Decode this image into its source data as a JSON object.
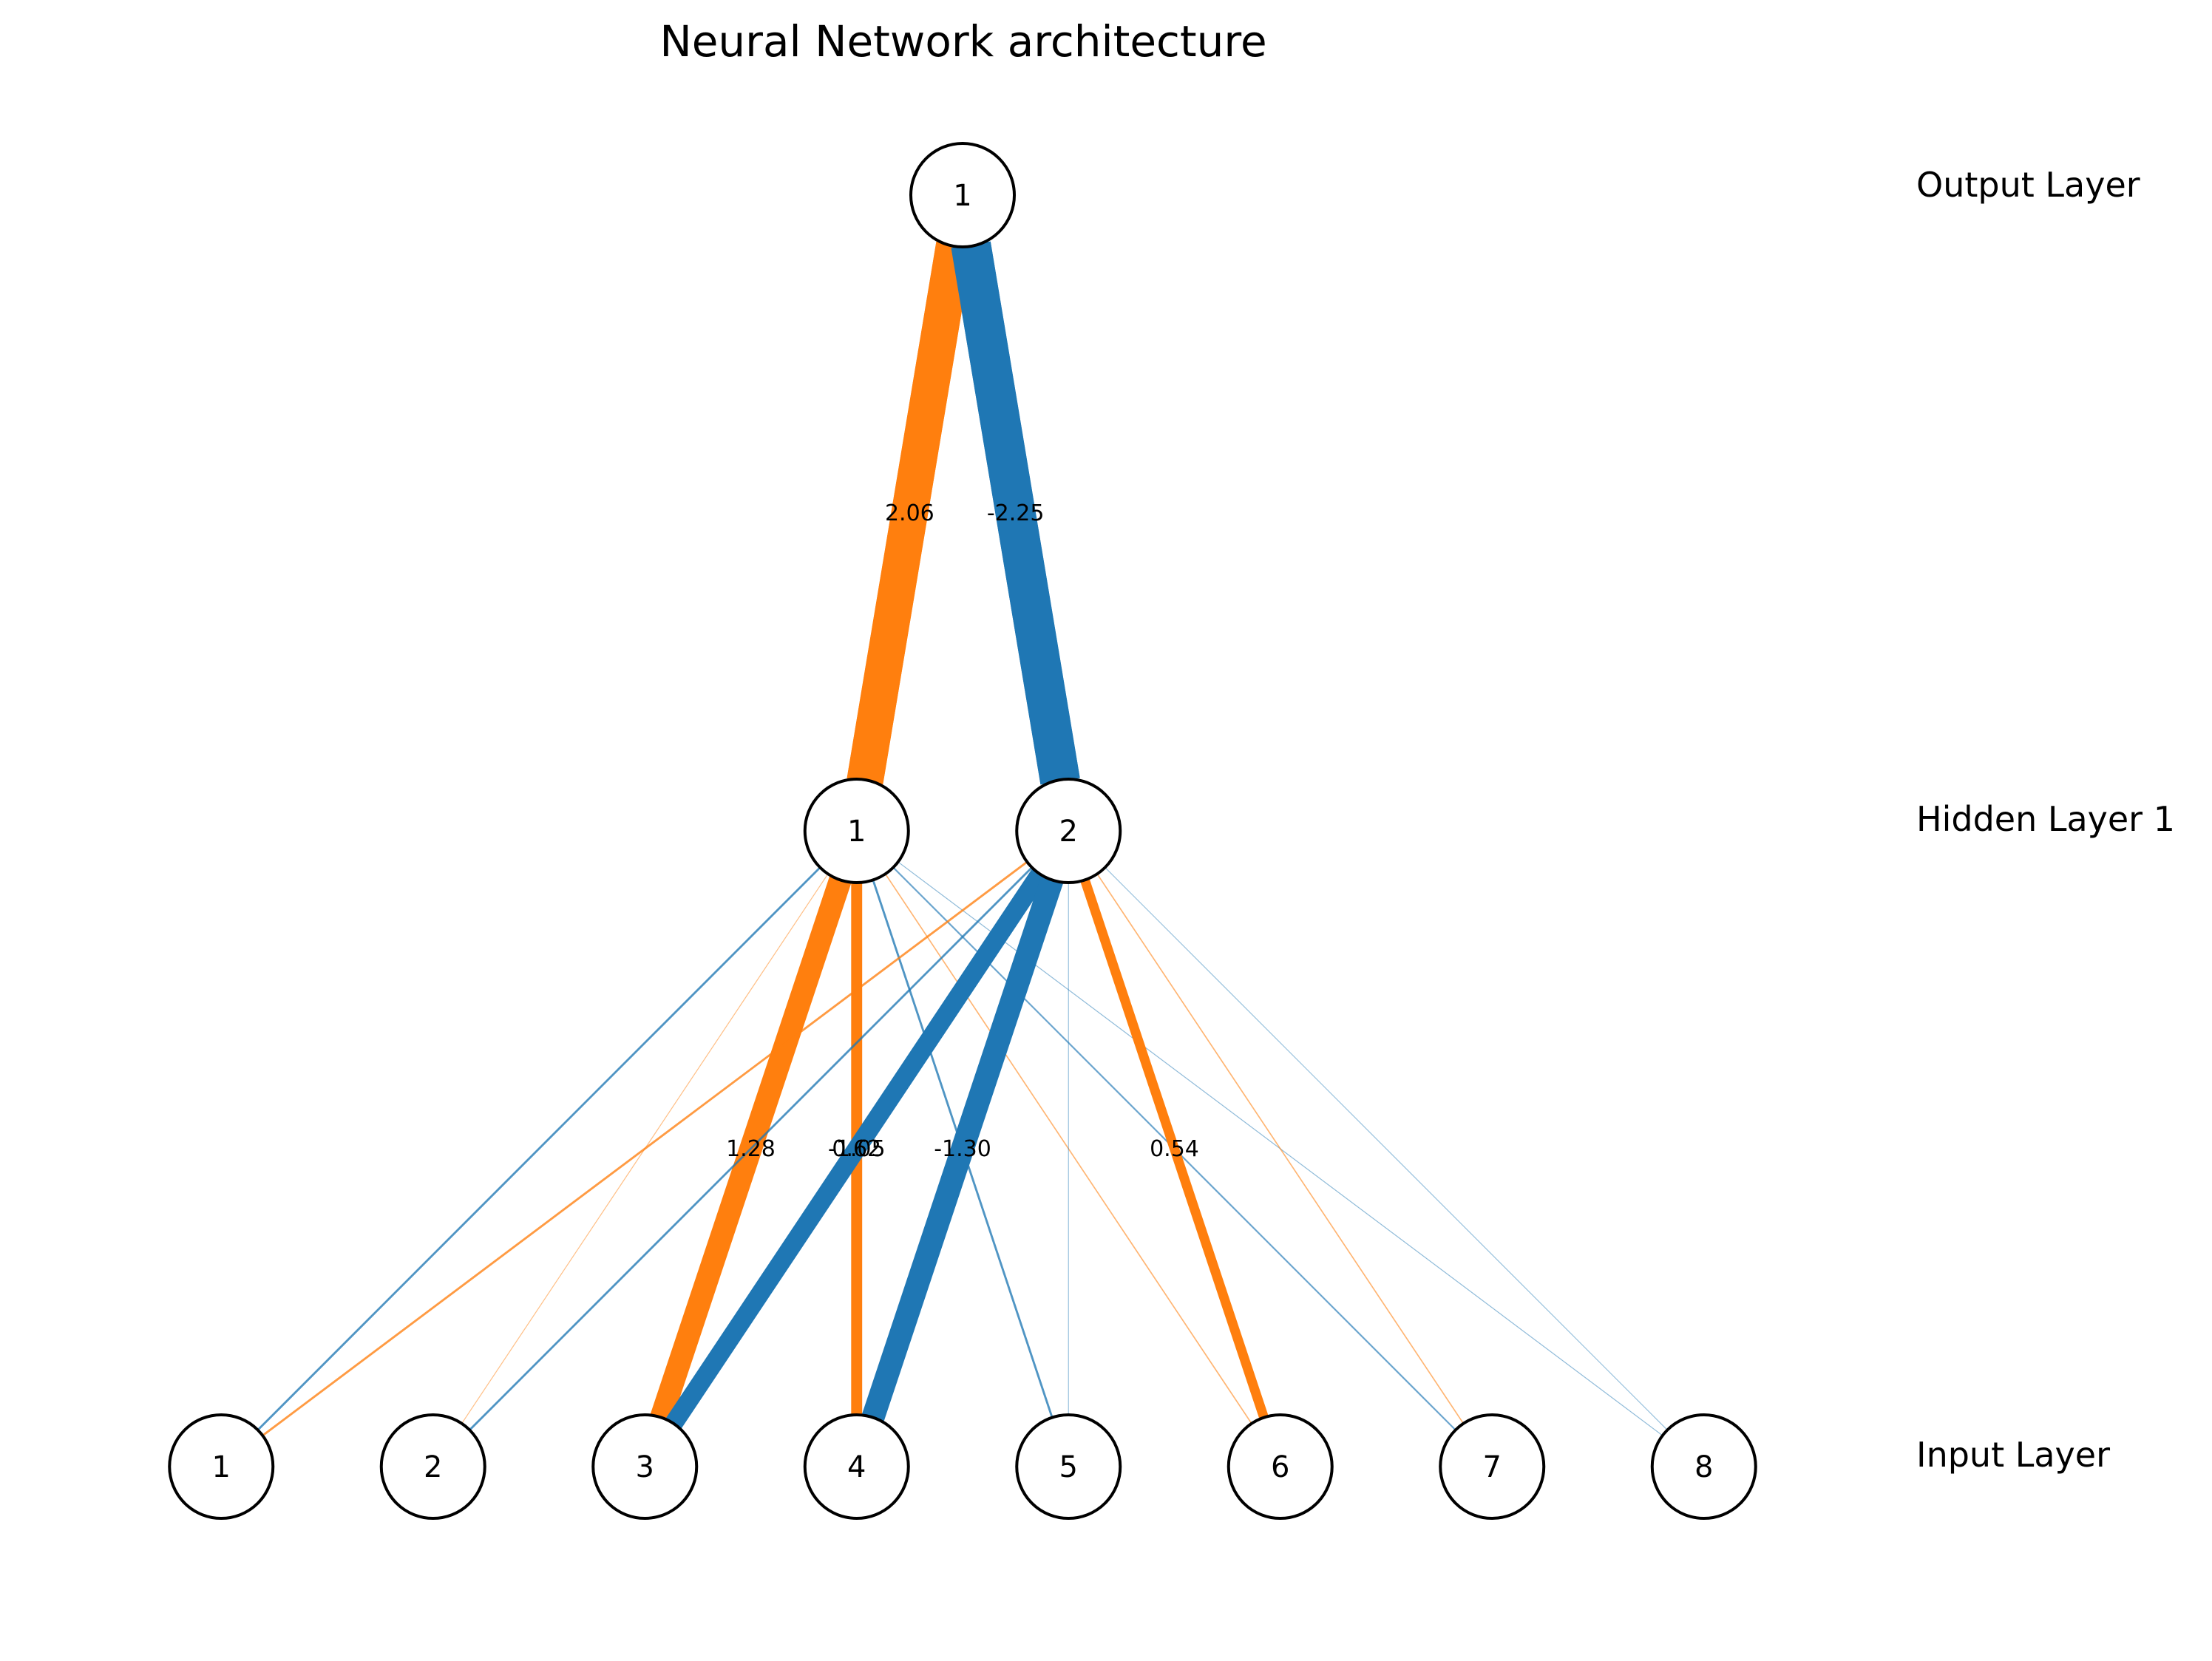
{
  "title": "Neural Network architecture",
  "colors": {
    "positive": "#ff7f0e",
    "negative": "#1f77b4",
    "node_stroke": "#000000",
    "node_fill": "#ffffff"
  },
  "layers": [
    {
      "name": "Input Layer",
      "nodes": [
        "1",
        "2",
        "3",
        "4",
        "5",
        "6",
        "7",
        "8"
      ]
    },
    {
      "name": "Hidden Layer 1",
      "nodes": [
        "1",
        "2"
      ]
    },
    {
      "name": "Output Layer",
      "nodes": [
        "1"
      ]
    }
  ],
  "connections": [
    {
      "from_layer": 0,
      "from": 0,
      "to": 0,
      "weight": -0.12
    },
    {
      "from_layer": 0,
      "from": 1,
      "to": 0,
      "weight": 0.05
    },
    {
      "from_layer": 0,
      "from": 2,
      "to": 0,
      "weight": 1.28,
      "label": "1.28"
    },
    {
      "from_layer": 0,
      "from": 3,
      "to": 0,
      "weight": 0.62,
      "label": "0.62"
    },
    {
      "from_layer": 0,
      "from": 4,
      "to": 0,
      "weight": -0.12
    },
    {
      "from_layer": 0,
      "from": 5,
      "to": 0,
      "weight": 0.07
    },
    {
      "from_layer": 0,
      "from": 6,
      "to": 0,
      "weight": -0.09
    },
    {
      "from_layer": 0,
      "from": 7,
      "to": 0,
      "weight": -0.05
    },
    {
      "from_layer": 0,
      "from": 0,
      "to": 1,
      "weight": 0.12
    },
    {
      "from_layer": 0,
      "from": 1,
      "to": 1,
      "weight": -0.12
    },
    {
      "from_layer": 0,
      "from": 2,
      "to": 1,
      "weight": -1.05,
      "label": "-1.05"
    },
    {
      "from_layer": 0,
      "from": 3,
      "to": 1,
      "weight": -1.3,
      "label": "-1.30"
    },
    {
      "from_layer": 0,
      "from": 4,
      "to": 1,
      "weight": -0.04
    },
    {
      "from_layer": 0,
      "from": 5,
      "to": 1,
      "weight": 0.54,
      "label": "0.54"
    },
    {
      "from_layer": 0,
      "from": 6,
      "to": 1,
      "weight": 0.07
    },
    {
      "from_layer": 0,
      "from": 7,
      "to": 1,
      "weight": -0.04
    },
    {
      "from_layer": 1,
      "from": 0,
      "to": 0,
      "weight": 2.06,
      "label": "2.06"
    },
    {
      "from_layer": 1,
      "from": 1,
      "to": 0,
      "weight": -2.25,
      "label": "-2.25"
    }
  ]
}
